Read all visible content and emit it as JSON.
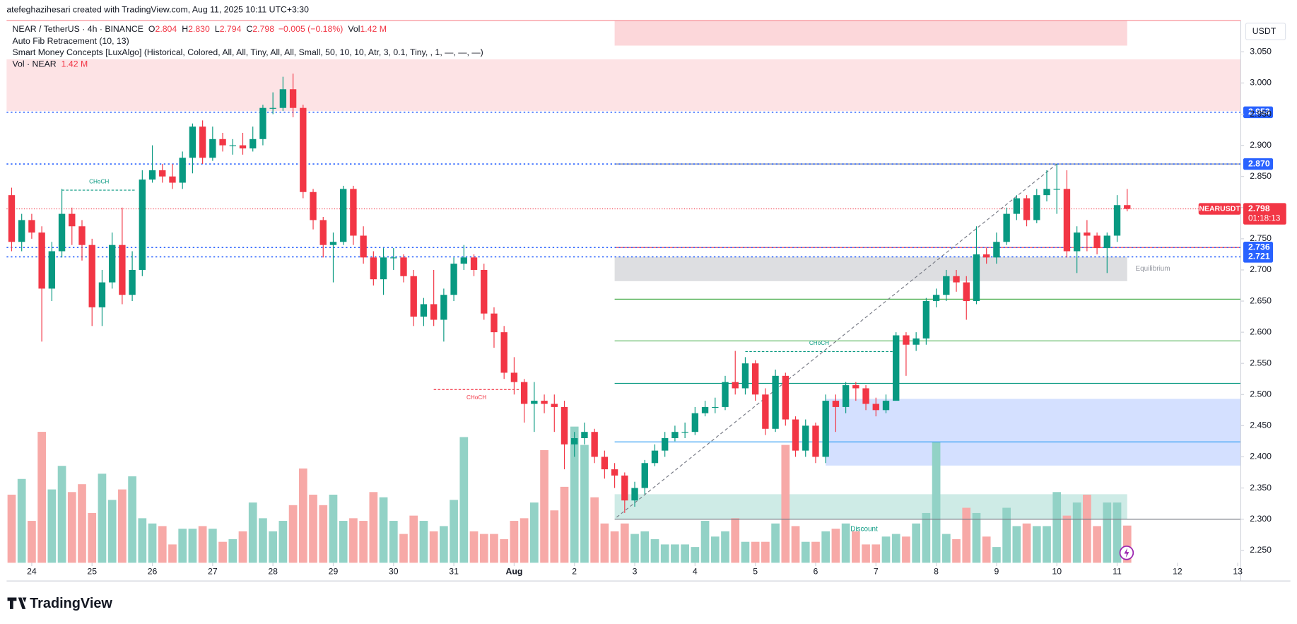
{
  "header": {
    "credit": "atefeghazihesari created with TradingView.com, Aug 11, 2025 10:11 UTC+3:30",
    "symbol": "NEAR / TetherUS · 4h · BINANCE",
    "ohlc": [
      {
        "key": "O",
        "value": "2.804"
      },
      {
        "key": "H",
        "value": "2.830"
      },
      {
        "key": "L",
        "value": "2.794"
      },
      {
        "key": "C",
        "value": "2.798"
      }
    ],
    "change": "−0.005 (−0.18%)",
    "vol_key": "Vol",
    "vol_value": "1.42 M",
    "indicators": [
      "Auto Fib Retracement (10, 13)",
      "Smart Money Concepts [LuxAlgo] (Historical, Colored, All, All, Tiny, All, All, Small, 50, 10, 10, Atr, 3, 0.1, Tiny, , 1, —, —, —)"
    ]
  },
  "chart_data": {
    "type": "candlestick",
    "currency": "USDT",
    "xlim": [
      -0.5,
      122.3
    ],
    "ylim": [
      2.23,
      3.1
    ],
    "xticks": [
      {
        "value": 2,
        "label": "24"
      },
      {
        "value": 8,
        "label": "25"
      },
      {
        "value": 14,
        "label": "26"
      },
      {
        "value": 20,
        "label": "27"
      },
      {
        "value": 26,
        "label": "28"
      },
      {
        "value": 32,
        "label": "29"
      },
      {
        "value": 38,
        "label": "30"
      },
      {
        "value": 44,
        "label": "31"
      },
      {
        "value": 50,
        "label": "Aug"
      },
      {
        "value": 56,
        "label": "2"
      },
      {
        "value": 62,
        "label": "3"
      },
      {
        "value": 68,
        "label": "4"
      },
      {
        "value": 74,
        "label": "5"
      },
      {
        "value": 80,
        "label": "6"
      },
      {
        "value": 86,
        "label": "7"
      },
      {
        "value": 92,
        "label": "8"
      },
      {
        "value": 98,
        "label": "9"
      },
      {
        "value": 104,
        "label": "10"
      },
      {
        "value": 110,
        "label": "11"
      },
      {
        "value": 116,
        "label": "12"
      },
      {
        "value": 122,
        "label": "13"
      }
    ],
    "yticks": [
      {
        "value": 2.25,
        "label": "2.250"
      },
      {
        "value": 2.3,
        "label": "2.300"
      },
      {
        "value": 2.35,
        "label": "2.350"
      },
      {
        "value": 2.4,
        "label": "2.400"
      },
      {
        "value": 2.45,
        "label": "2.450"
      },
      {
        "value": 2.5,
        "label": "2.500"
      },
      {
        "value": 2.55,
        "label": "2.550"
      },
      {
        "value": 2.6,
        "label": "2.600"
      },
      {
        "value": 2.65,
        "label": "2.650"
      },
      {
        "value": 2.7,
        "label": "2.700"
      },
      {
        "value": 2.75,
        "label": "2.750"
      },
      {
        "value": 2.8,
        "label": "2.800"
      },
      {
        "value": 2.85,
        "label": "2.850"
      },
      {
        "value": 2.9,
        "label": "2.900"
      },
      {
        "value": 2.95,
        "label": "2.950"
      },
      {
        "value": 3.0,
        "label": "3.000"
      },
      {
        "value": 3.05,
        "label": "3.050"
      }
    ],
    "series": [
      {
        "name": "NEARUSDT",
        "up_color": "#089981",
        "down_color": "#f23645",
        "open": [
          2.82,
          2.745,
          2.78,
          2.76,
          2.67,
          2.73,
          2.79,
          2.77,
          2.74,
          2.64,
          2.68,
          2.74,
          2.66,
          2.7,
          2.845,
          2.86,
          2.85,
          2.84,
          2.88,
          2.93,
          2.88,
          2.91,
          2.9,
          2.9,
          2.895,
          2.91,
          2.96,
          2.96,
          2.99,
          2.96,
          2.825,
          2.78,
          2.74,
          2.745,
          2.83,
          2.755,
          2.72,
          2.685,
          2.72,
          2.72,
          2.69,
          2.625,
          2.645,
          2.62,
          2.66,
          2.71,
          2.72,
          2.7,
          2.63,
          2.6,
          2.535,
          2.52,
          2.485,
          2.49,
          2.485,
          2.48,
          2.42,
          2.43,
          2.44,
          2.4,
          2.38,
          2.37,
          2.33,
          2.35,
          2.39,
          2.41,
          2.43,
          2.44,
          2.44,
          2.47,
          2.48,
          2.48,
          2.52,
          2.51,
          2.55,
          2.5,
          2.445,
          2.53,
          2.46,
          2.41,
          2.45,
          2.4,
          2.49,
          2.48,
          2.515,
          2.51,
          2.485,
          2.475,
          2.49,
          2.595,
          2.58,
          2.59,
          2.65,
          2.66,
          2.69,
          2.68,
          2.65,
          2.725,
          2.72,
          2.745,
          2.79,
          2.815,
          2.78,
          2.82,
          2.83,
          2.83,
          2.73,
          2.76,
          2.755,
          2.735,
          2.755,
          2.804
        ],
        "high": [
          2.832,
          2.79,
          2.79,
          2.77,
          2.745,
          2.83,
          2.8,
          2.78,
          2.75,
          2.7,
          2.76,
          2.8,
          2.73,
          2.86,
          2.9,
          2.87,
          2.87,
          2.89,
          2.935,
          2.94,
          2.93,
          2.92,
          2.91,
          2.92,
          2.93,
          2.965,
          2.985,
          3.01,
          3.015,
          2.965,
          2.83,
          2.785,
          2.76,
          2.835,
          2.835,
          2.77,
          2.73,
          2.735,
          2.735,
          2.725,
          2.7,
          2.655,
          2.7,
          2.67,
          2.72,
          2.74,
          2.725,
          2.71,
          2.64,
          2.61,
          2.56,
          2.525,
          2.52,
          2.5,
          2.5,
          2.49,
          2.44,
          2.455,
          2.445,
          2.41,
          2.39,
          2.375,
          2.36,
          2.395,
          2.42,
          2.44,
          2.45,
          2.455,
          2.48,
          2.49,
          2.495,
          2.53,
          2.57,
          2.56,
          2.555,
          2.51,
          2.54,
          2.535,
          2.465,
          2.46,
          2.455,
          2.5,
          2.5,
          2.52,
          2.52,
          2.515,
          2.495,
          2.5,
          2.6,
          2.6,
          2.6,
          2.655,
          2.67,
          2.7,
          2.7,
          2.69,
          2.77,
          2.735,
          2.76,
          2.8,
          2.82,
          2.82,
          2.83,
          2.86,
          2.87,
          2.86,
          2.77,
          2.78,
          2.76,
          2.76,
          2.82,
          2.83
        ],
        "low": [
          2.73,
          2.73,
          2.75,
          2.585,
          2.65,
          2.72,
          2.74,
          2.715,
          2.61,
          2.61,
          2.67,
          2.645,
          2.65,
          2.69,
          2.84,
          2.84,
          2.83,
          2.83,
          2.855,
          2.87,
          2.875,
          2.89,
          2.885,
          2.885,
          2.89,
          2.9,
          2.95,
          2.955,
          2.945,
          2.815,
          2.765,
          2.72,
          2.68,
          2.74,
          2.74,
          2.71,
          2.675,
          2.66,
          2.7,
          2.68,
          2.61,
          2.61,
          2.61,
          2.585,
          2.65,
          2.7,
          2.69,
          2.62,
          2.575,
          2.525,
          2.5,
          2.455,
          2.44,
          2.47,
          2.44,
          2.38,
          2.4,
          2.42,
          2.39,
          2.365,
          2.35,
          2.31,
          2.32,
          2.34,
          2.385,
          2.4,
          2.425,
          2.43,
          2.435,
          2.465,
          2.47,
          2.475,
          2.5,
          2.5,
          2.49,
          2.435,
          2.44,
          2.45,
          2.4,
          2.4,
          2.39,
          2.39,
          2.44,
          2.47,
          2.49,
          2.475,
          2.465,
          2.47,
          2.49,
          2.53,
          2.57,
          2.58,
          2.64,
          2.65,
          2.665,
          2.62,
          2.645,
          2.71,
          2.71,
          2.74,
          2.78,
          2.77,
          2.775,
          2.81,
          2.79,
          2.72,
          2.695,
          2.73,
          2.725,
          2.695,
          2.745,
          2.794
        ],
        "close": [
          2.745,
          2.78,
          2.76,
          2.67,
          2.73,
          2.79,
          2.77,
          2.74,
          2.64,
          2.68,
          2.74,
          2.66,
          2.7,
          2.845,
          2.86,
          2.85,
          2.84,
          2.88,
          2.93,
          2.88,
          2.91,
          2.9,
          2.9,
          2.895,
          2.91,
          2.96,
          2.96,
          2.99,
          2.96,
          2.825,
          2.78,
          2.74,
          2.745,
          2.83,
          2.755,
          2.72,
          2.685,
          2.72,
          2.72,
          2.69,
          2.625,
          2.645,
          2.62,
          2.66,
          2.71,
          2.72,
          2.7,
          2.63,
          2.6,
          2.535,
          2.52,
          2.485,
          2.49,
          2.485,
          2.48,
          2.42,
          2.43,
          2.44,
          2.4,
          2.38,
          2.37,
          2.33,
          2.35,
          2.39,
          2.41,
          2.43,
          2.44,
          2.44,
          2.47,
          2.48,
          2.48,
          2.52,
          2.51,
          2.55,
          2.5,
          2.445,
          2.53,
          2.46,
          2.41,
          2.45,
          2.4,
          2.49,
          2.48,
          2.515,
          2.51,
          2.485,
          2.475,
          2.49,
          2.595,
          2.58,
          2.59,
          2.65,
          2.66,
          2.69,
          2.68,
          2.65,
          2.725,
          2.72,
          2.745,
          2.79,
          2.815,
          2.78,
          2.82,
          2.83,
          2.83,
          2.73,
          2.76,
          2.755,
          2.735,
          2.755,
          2.804,
          2.798
        ]
      }
    ],
    "volume": {
      "name": "Vol · NEAR",
      "value_label": "1.42 M",
      "ylim": [
        0,
        20.7
      ],
      "up_color": "#92d2c6",
      "down_color": "#f7a9a7",
      "values": [
        2.6,
        3.2,
        1.6,
        5.0,
        2.8,
        3.7,
        2.7,
        3.0,
        1.9,
        3.4,
        2.4,
        2.8,
        3.3,
        1.7,
        1.5,
        1.4,
        0.7,
        1.3,
        1.3,
        1.4,
        1.3,
        0.8,
        0.9,
        1.2,
        2.3,
        1.7,
        1.2,
        1.6,
        2.2,
        3.6,
        2.6,
        2.2,
        2.6,
        1.6,
        1.7,
        1.6,
        2.7,
        2.5,
        1.6,
        1.1,
        1.8,
        1.6,
        1.2,
        1.4,
        2.4,
        4.8,
        1.2,
        1.1,
        1.1,
        0.9,
        1.6,
        1.7,
        2.3,
        4.3,
        2.0,
        2.9,
        5.2,
        4.5,
        2.5,
        1.5,
        1.2,
        1.5,
        1.1,
        1.2,
        0.9,
        0.7,
        0.7,
        0.7,
        0.6,
        1.6,
        1.0,
        1.2,
        1.7,
        0.8,
        0.8,
        0.8,
        1.5,
        4.5,
        1.4,
        0.8,
        0.8,
        1.2,
        1.3,
        1.5,
        1.2,
        0.7,
        0.7,
        1.0,
        1.1,
        1.0,
        1.5,
        1.9,
        4.6,
        1.1,
        0.9,
        2.1,
        1.9,
        1.0,
        0.6,
        2.1,
        1.4,
        1.5,
        1.4,
        1.4,
        2.7,
        1.8,
        2.3,
        2.6,
        1.4,
        2.3,
        2.3,
        1.42
      ]
    },
    "zones": [
      {
        "x": [
          60,
          111
        ],
        "y": [
          3.06,
          3.1
        ],
        "color": "rgba(242,54,69,0.2)"
      },
      {
        "x": [
          -0.5,
          122.3
        ],
        "y": [
          2.955,
          3.038
        ],
        "color": "rgba(242,54,69,0.14)"
      },
      {
        "x": [
          60,
          111
        ],
        "y": [
          2.682,
          2.721
        ],
        "color": "rgba(120,123,134,0.25)",
        "label": "Equilibrium"
      },
      {
        "x": [
          81,
          122.3
        ],
        "y": [
          2.386,
          2.493
        ],
        "color": "rgba(41,98,255,0.2)"
      },
      {
        "x": [
          60,
          111
        ],
        "y": [
          2.3,
          2.34
        ],
        "color": "rgba(8,153,129,0.2)",
        "label": "Discount"
      }
    ],
    "fib_x": [
      60,
      122.3
    ],
    "fib_lines": [
      {
        "price": 2.87,
        "color": "#787b86"
      },
      {
        "price": 2.736,
        "color": "#f23645"
      },
      {
        "price": 2.653,
        "color": "#4caf50"
      },
      {
        "price": 2.586,
        "color": "#4caf50"
      },
      {
        "price": 2.518,
        "color": "#089981"
      },
      {
        "price": 2.424,
        "color": "#2196f3"
      },
      {
        "price": 2.3,
        "color": "#787b86"
      }
    ],
    "fib_trend": {
      "x": [
        60.2,
        104
      ],
      "y": [
        2.303,
        2.87
      ]
    },
    "levels": [
      2.953,
      {
        "value": 2.87,
        "label": "2.870"
      },
      2.736,
      2.721
    ],
    "level_color": "#2962ff",
    "structures": [
      {
        "label": "CHoCH",
        "price": 2.828,
        "x": [
          5,
          12.4
        ],
        "color": "#089981"
      },
      {
        "label": "CHoCH",
        "price": 2.508,
        "x": [
          42,
          50.5
        ],
        "color": "#f23645"
      },
      {
        "label": "CHoCH",
        "price": 2.569,
        "x": [
          73,
          87.7
        ],
        "color": "#089981"
      }
    ],
    "price_line": {
      "value": 2.798,
      "countdown": "01:18:13",
      "color": "#f23645"
    }
  },
  "footer": {
    "logo": "TradingView"
  }
}
